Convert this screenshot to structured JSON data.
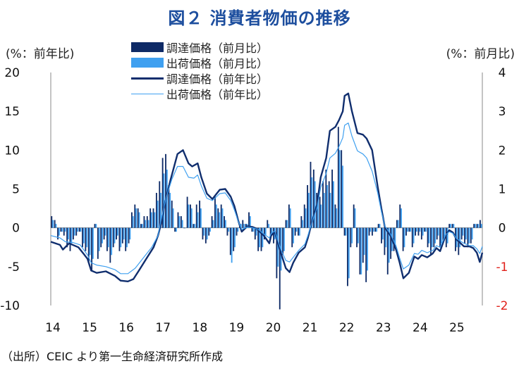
{
  "title": "図２ 消費者物価の推移",
  "left_unit": "(%：前年比)",
  "right_unit": "(%：前月比)",
  "source": "（出所）CEIC より第一生命経済研究所作成",
  "colors": {
    "title": "#1d4e9e",
    "import_mom": "#0e2a66",
    "export_mom": "#3fa0f0",
    "import_yoy": "#102e6e",
    "export_yoy": "#3fa0f0",
    "right_axis_negative": "#e0201a"
  },
  "chart_data": {
    "type": "bar+line",
    "legend": [
      "調達価格（前月比）",
      "出荷価格（前月比）",
      "調達価格（前年比）",
      "出荷価格（前年比）"
    ],
    "y_left": {
      "ticks": [
        20,
        15,
        10,
        5,
        0,
        -5,
        -10
      ],
      "range": [
        -10,
        20
      ]
    },
    "y_right": {
      "ticks": [
        4,
        3,
        2,
        1,
        0,
        -1,
        -2
      ],
      "range": [
        -2,
        4
      ]
    },
    "x_ticks": [
      "14",
      "15",
      "16",
      "17",
      "18",
      "19",
      "20",
      "21",
      "22",
      "23",
      "24",
      "25"
    ],
    "x_start": 2014.0,
    "x_end": 2025.75,
    "series": [
      {
        "name": "調達価格（前年比）",
        "kind": "line",
        "axis": "left",
        "color": "#102e6e",
        "points": [
          [
            2014.0,
            -1.8
          ],
          [
            2014.25,
            -2.2
          ],
          [
            2014.33,
            -2.8
          ],
          [
            2014.5,
            -2.0
          ],
          [
            2014.75,
            -2.5
          ],
          [
            2014.92,
            -3.5
          ],
          [
            2015.0,
            -4.0
          ],
          [
            2015.1,
            -5.5
          ],
          [
            2015.25,
            -5.8
          ],
          [
            2015.5,
            -5.6
          ],
          [
            2015.75,
            -6.2
          ],
          [
            2015.9,
            -6.8
          ],
          [
            2016.1,
            -6.9
          ],
          [
            2016.25,
            -6.6
          ],
          [
            2016.4,
            -5.5
          ],
          [
            2016.6,
            -4.0
          ],
          [
            2016.8,
            -2.5
          ],
          [
            2016.92,
            -1.0
          ],
          [
            2017.0,
            0.5
          ],
          [
            2017.1,
            3.0
          ],
          [
            2017.25,
            6.0
          ],
          [
            2017.45,
            9.5
          ],
          [
            2017.6,
            10.0
          ],
          [
            2017.75,
            8.3
          ],
          [
            2017.85,
            7.9
          ],
          [
            2018.0,
            8.3
          ],
          [
            2018.1,
            6.5
          ],
          [
            2018.25,
            4.4
          ],
          [
            2018.4,
            3.7
          ],
          [
            2018.6,
            4.9
          ],
          [
            2018.75,
            5.0
          ],
          [
            2018.9,
            4.0
          ],
          [
            2019.0,
            2.8
          ],
          [
            2019.1,
            1.0
          ],
          [
            2019.2,
            -0.5
          ],
          [
            2019.35,
            0.2
          ],
          [
            2019.5,
            0.1
          ],
          [
            2019.6,
            -0.1
          ],
          [
            2019.8,
            -1.0
          ],
          [
            2019.95,
            -2.0
          ],
          [
            2020.0,
            -1.0
          ],
          [
            2020.1,
            -0.5
          ],
          [
            2020.25,
            -3.0
          ],
          [
            2020.4,
            -5.2
          ],
          [
            2020.5,
            -5.7
          ],
          [
            2020.6,
            -4.5
          ],
          [
            2020.75,
            -3.2
          ],
          [
            2020.92,
            -2.5
          ],
          [
            2021.0,
            -1.3
          ],
          [
            2021.1,
            0.5
          ],
          [
            2021.25,
            3.0
          ],
          [
            2021.35,
            6.5
          ],
          [
            2021.5,
            9.0
          ],
          [
            2021.6,
            12.5
          ],
          [
            2021.75,
            13.0
          ],
          [
            2021.85,
            13.9
          ],
          [
            2021.95,
            15.0
          ],
          [
            2022.0,
            17.0
          ],
          [
            2022.1,
            17.3
          ],
          [
            2022.2,
            15.0
          ],
          [
            2022.35,
            12.2
          ],
          [
            2022.5,
            12.0
          ],
          [
            2022.6,
            11.5
          ],
          [
            2022.75,
            10.0
          ],
          [
            2022.9,
            5.3
          ],
          [
            2023.0,
            2.5
          ],
          [
            2023.1,
            0.0
          ],
          [
            2023.25,
            -1.0
          ],
          [
            2023.4,
            -2.8
          ],
          [
            2023.5,
            -4.5
          ],
          [
            2023.6,
            -6.5
          ],
          [
            2023.75,
            -5.8
          ],
          [
            2023.9,
            -3.7
          ],
          [
            2024.0,
            -4.0
          ],
          [
            2024.1,
            -3.5
          ],
          [
            2024.25,
            -3.8
          ],
          [
            2024.4,
            -3.3
          ],
          [
            2024.5,
            -2.6
          ],
          [
            2024.6,
            -3.0
          ],
          [
            2024.75,
            -1.0
          ],
          [
            2024.85,
            -0.3
          ],
          [
            2024.95,
            -0.6
          ],
          [
            2025.05,
            -1.5
          ],
          [
            2025.25,
            -2.4
          ],
          [
            2025.4,
            -2.4
          ],
          [
            2025.5,
            -2.6
          ],
          [
            2025.6,
            -3.2
          ],
          [
            2025.68,
            -4.4
          ],
          [
            2025.75,
            -3.2
          ]
        ]
      },
      {
        "name": "出荷価格（前年比）",
        "kind": "line",
        "axis": "left",
        "color": "#3fa0f0",
        "points": [
          [
            2014.0,
            -1.0
          ],
          [
            2014.25,
            -1.3
          ],
          [
            2014.4,
            -1.8
          ],
          [
            2014.6,
            -1.9
          ],
          [
            2014.8,
            -2.2
          ],
          [
            2015.0,
            -3.5
          ],
          [
            2015.1,
            -4.5
          ],
          [
            2015.25,
            -4.8
          ],
          [
            2015.5,
            -5.0
          ],
          [
            2015.75,
            -5.4
          ],
          [
            2015.9,
            -5.9
          ],
          [
            2016.1,
            -5.9
          ],
          [
            2016.3,
            -5.2
          ],
          [
            2016.5,
            -4.0
          ],
          [
            2016.75,
            -2.5
          ],
          [
            2016.92,
            -1.0
          ],
          [
            2017.0,
            1.0
          ],
          [
            2017.15,
            4.0
          ],
          [
            2017.3,
            6.3
          ],
          [
            2017.45,
            7.9
          ],
          [
            2017.6,
            7.9
          ],
          [
            2017.75,
            6.5
          ],
          [
            2017.9,
            6.4
          ],
          [
            2018.0,
            6.8
          ],
          [
            2018.1,
            5.4
          ],
          [
            2018.25,
            3.8
          ],
          [
            2018.4,
            3.5
          ],
          [
            2018.6,
            4.4
          ],
          [
            2018.75,
            4.5
          ],
          [
            2018.9,
            3.5
          ],
          [
            2019.0,
            2.3
          ],
          [
            2019.1,
            0.9
          ],
          [
            2019.2,
            -0.2
          ],
          [
            2019.35,
            0.1
          ],
          [
            2019.5,
            0.0
          ],
          [
            2019.65,
            -0.2
          ],
          [
            2019.8,
            -0.8
          ],
          [
            2019.95,
            -1.3
          ],
          [
            2020.0,
            -0.7
          ],
          [
            2020.1,
            -0.4
          ],
          [
            2020.25,
            -2.6
          ],
          [
            2020.4,
            -4.2
          ],
          [
            2020.5,
            -4.4
          ],
          [
            2020.6,
            -3.8
          ],
          [
            2020.75,
            -2.9
          ],
          [
            2020.92,
            -2.1
          ],
          [
            2021.0,
            -1.0
          ],
          [
            2021.1,
            0.5
          ],
          [
            2021.25,
            2.6
          ],
          [
            2021.35,
            5.2
          ],
          [
            2021.5,
            7.0
          ],
          [
            2021.6,
            9.0
          ],
          [
            2021.75,
            9.6
          ],
          [
            2021.85,
            10.5
          ],
          [
            2021.95,
            11.6
          ],
          [
            2022.0,
            13.2
          ],
          [
            2022.1,
            13.5
          ],
          [
            2022.2,
            11.8
          ],
          [
            2022.35,
            9.9
          ],
          [
            2022.5,
            9.5
          ],
          [
            2022.6,
            9.0
          ],
          [
            2022.75,
            7.3
          ],
          [
            2022.9,
            4.5
          ],
          [
            2023.0,
            2.1
          ],
          [
            2023.1,
            0.2
          ],
          [
            2023.25,
            -0.8
          ],
          [
            2023.4,
            -2.3
          ],
          [
            2023.5,
            -3.9
          ],
          [
            2023.6,
            -5.3
          ],
          [
            2023.75,
            -4.8
          ],
          [
            2023.9,
            -3.3
          ],
          [
            2024.0,
            -3.4
          ],
          [
            2024.1,
            -2.9
          ],
          [
            2024.25,
            -3.2
          ],
          [
            2024.4,
            -2.9
          ],
          [
            2024.5,
            -2.3
          ],
          [
            2024.6,
            -2.5
          ],
          [
            2024.75,
            -0.9
          ],
          [
            2024.85,
            -0.5
          ],
          [
            2024.95,
            -0.7
          ],
          [
            2025.05,
            -1.4
          ],
          [
            2025.25,
            -2.0
          ],
          [
            2025.4,
            -2.3
          ],
          [
            2025.5,
            -2.3
          ],
          [
            2025.6,
            -2.7
          ],
          [
            2025.68,
            -3.3
          ],
          [
            2025.75,
            -2.4
          ]
        ]
      },
      {
        "name": "調達価格（前月比）",
        "kind": "bar",
        "axis": "right",
        "color": "#0e2a66",
        "values": [
          0.3,
          0.2,
          -0.3,
          -0.1,
          -0.2,
          -0.5,
          -0.6,
          -0.3,
          -0.2,
          -0.1,
          -0.5,
          -0.6,
          -0.9,
          -1.1,
          0.1,
          -0.8,
          -0.5,
          -0.3,
          -0.6,
          -0.9,
          -0.5,
          -0.3,
          -0.6,
          -0.4,
          -0.6,
          -0.4,
          0.4,
          0.6,
          0.5,
          0.1,
          0.3,
          0.3,
          0.5,
          0.5,
          0.9,
          1.2,
          1.8,
          1.9,
          1.1,
          0.7,
          -0.1,
          0.4,
          0.3,
          0.0,
          0.8,
          0.6,
          0.1,
          0.6,
          0.7,
          -0.3,
          -0.4,
          -0.2,
          0.3,
          0.8,
          0.5,
          0.6,
          0.3,
          -0.2,
          -0.7,
          -0.6,
          -0.2,
          0.1,
          0.2,
          0.1,
          0.4,
          -0.1,
          -0.3,
          -0.6,
          -0.6,
          -0.3,
          0.2,
          -0.3,
          -0.4,
          -1.3,
          -2.1,
          -0.7,
          0.2,
          0.6,
          -0.5,
          -0.2,
          -0.2,
          0.3,
          0.6,
          1.1,
          1.7,
          1.5,
          0.9,
          0.8,
          1.2,
          1.5,
          1.2,
          1.5,
          0.6,
          2.6,
          2.0,
          -0.2,
          -1.5,
          -0.5,
          0.6,
          -0.5,
          -1.2,
          -0.9,
          -1.4,
          -0.2,
          -0.2,
          -0.1,
          0.1,
          -0.4,
          -0.7,
          -1.2,
          -0.8,
          -0.6,
          0.2,
          0.6,
          -0.6,
          -0.2,
          -0.1,
          -0.5,
          -0.2,
          -0.2,
          -0.3,
          -0.1,
          -0.5,
          -0.7,
          -0.5,
          -0.3,
          -0.5,
          -0.4,
          -0.5,
          0.1,
          0.1,
          -0.6,
          -0.7,
          -0.3,
          -0.4,
          -0.5,
          -0.4,
          0.1,
          0.1,
          0.2
        ]
      },
      {
        "name": "出荷価格（前月比）",
        "kind": "bar",
        "axis": "right",
        "color": "#3fa0f0",
        "values": [
          0.2,
          0.1,
          -0.2,
          -0.1,
          -0.1,
          -0.3,
          -0.4,
          -0.2,
          -0.1,
          -0.1,
          -0.4,
          -0.5,
          -0.7,
          -0.8,
          0.1,
          -0.6,
          -0.4,
          -0.2,
          -0.5,
          -0.7,
          -0.4,
          -0.2,
          -0.5,
          -0.3,
          -0.5,
          -0.3,
          0.3,
          0.5,
          0.4,
          0.1,
          0.2,
          0.2,
          0.4,
          0.4,
          0.7,
          0.9,
          1.4,
          1.5,
          0.9,
          0.5,
          -0.1,
          0.3,
          0.2,
          0.0,
          0.6,
          0.5,
          0.1,
          0.4,
          0.5,
          -0.2,
          -0.3,
          -0.1,
          0.2,
          0.6,
          0.4,
          0.5,
          0.2,
          -0.1,
          -0.9,
          -0.5,
          -0.1,
          0.1,
          0.1,
          0.1,
          0.3,
          -0.1,
          -0.2,
          -0.5,
          -0.5,
          -0.2,
          0.1,
          -0.2,
          -0.3,
          -1.0,
          -1.1,
          -0.6,
          0.2,
          0.5,
          -0.4,
          -0.1,
          -0.2,
          0.2,
          0.5,
          0.9,
          1.3,
          1.2,
          0.7,
          0.6,
          0.9,
          1.1,
          0.9,
          1.2,
          0.5,
          2.0,
          1.6,
          -0.2,
          -1.3,
          -0.4,
          0.5,
          -0.4,
          -1.2,
          -0.7,
          -1.1,
          -0.1,
          -0.1,
          -0.1,
          0.1,
          -0.3,
          -0.5,
          -0.9,
          -0.6,
          -0.5,
          0.2,
          0.5,
          -0.5,
          -0.1,
          -0.1,
          -0.4,
          -0.1,
          -0.1,
          -0.2,
          -0.1,
          -0.4,
          -0.5,
          -0.4,
          -0.2,
          -0.4,
          -0.3,
          -0.4,
          0.1,
          0.1,
          -0.5,
          -0.5,
          -0.2,
          -0.3,
          -0.4,
          -0.3,
          0.1,
          0.1,
          0.1
        ]
      }
    ]
  }
}
